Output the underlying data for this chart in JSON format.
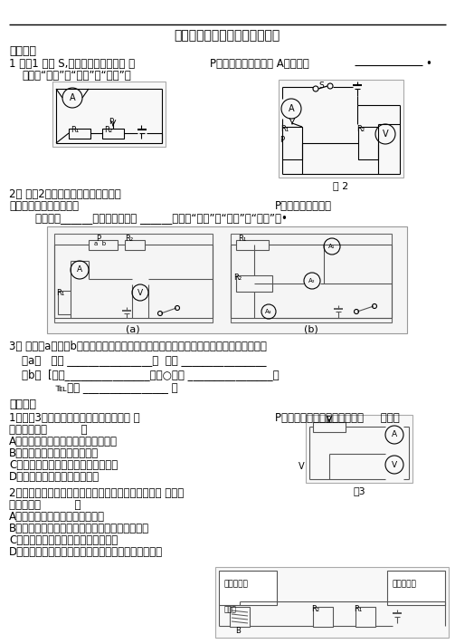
{
  "title": "电流表电压表示数变化专题练习",
  "section1": "一、填空",
  "q1_line1": "1 如图1 闭合 S,当滑动变阵器的滑片 填",
  "q1_line2": "P向右移动时，电流表 A的示数将",
  "q1_line3": "（选填“变小”、“不变”或“变大”）",
  "q2_line1": "2、 如图2所示的电路中，电源电压不",
  "q2_line2": "变，当滑动变阵器的滑片",
  "q2_line3": "P向上移动时，电流",
  "q2_line4": "    表的示数______，电压表的示数 ______（选填“变大”、“变小”或“不变”）•",
  "fig2_label": "图 2",
  "q3_line1": "3、 如图（a）、（b）两电路中滑动变阵器滑片向左移动，判断电路中各电表如何变化。",
  "q3_a": "（a）   读数 ________________，  读数 ________________",
  "q3_b1": "（b）  [读数________________，住○读数 ________________，",
  "q3_b2": "          ℡实数 ________________ 。",
  "section2": "二、选择",
  "q4_line1": "1、如图3所示的电路，滑动变阵器的滑片 的",
  "q4_line2": "P向右滑动的过程中，电流表和     电压表",
  "q4_line3": "示数变化是（          ）",
  "q4_A": "A、电流表示数变小，电压表示数变大",
  "q4_B": "B、电流表，电压表示数都变大",
  "q4_C": "C、电流表示数变大，电压表示数变小",
  "q4_D": "D、电流表，电压表示数都变小",
  "q5_line1": "2、如图是一个自动体重测试仪的工作原理图，有关它 的说法",
  "q5_line2": "正确的是（          ）",
  "fig3_label": "图3",
  "q5_A": "A、体重显示是用电压表改装成的",
  "q5_B": "B、体重测试仪电路由于缺少开关，始终处于通路",
  "q5_C": "C、体重越大，体重显示表的示数越大",
  "q5_D": "D、体重测试仪所测体重越大，体重显示表的示数越大",
  "bg_color": "#ffffff"
}
